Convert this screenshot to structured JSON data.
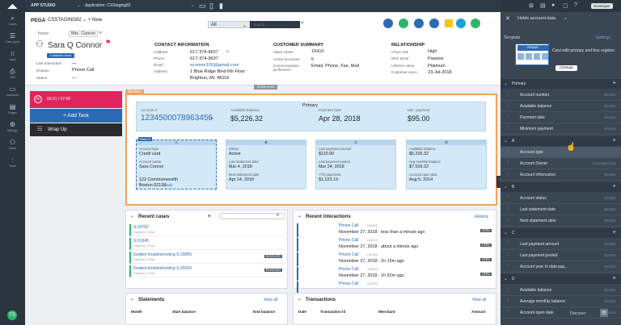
{
  "topbar": {
    "app_studio": "APP STUDIO",
    "application": "Application: CSStaging82",
    "developer": "Developer"
  },
  "rail": [
    {
      "icon": "search-icon",
      "glyph": "⌕",
      "label": "Cases"
    },
    {
      "icon": "data-icon",
      "glyph": "☰",
      "label": "Case types"
    },
    {
      "icon": "apps-icon",
      "glyph": "⁝⁝",
      "label": "Data"
    },
    {
      "icon": "file-icon",
      "glyph": "⎙",
      "label": "Files"
    },
    {
      "icon": "screen-icon",
      "glyph": "▭",
      "label": "Interfaces"
    },
    {
      "icon": "pages-icon",
      "glyph": "▤",
      "label": "Pages"
    },
    {
      "icon": "settings-icon",
      "glyph": "⚙",
      "label": "Settings"
    },
    {
      "icon": "users-icon",
      "glyph": "⚇",
      "label": "Users"
    },
    {
      "icon": "tools-icon",
      "glyph": "⫶",
      "label": "Tools"
    }
  ],
  "header": {
    "org": "PEGA",
    "case_id": "CSSTAGING82",
    "new_label": "+ New",
    "search_scope": "All",
    "search_placeholder": "Search...",
    "breadcrumb_home": "Home",
    "breadcrumb_tab": "Mrs. Connor",
    "customer_name": "Sara Q Connor",
    "customer_tag": "Customer since",
    "last_interaction_label": "Last interaction",
    "last_interaction_value": "—",
    "reason_label": "Reason",
    "reason_value": "Phone Call",
    "status_label": "Status",
    "status_value": "—",
    "contact": {
      "title": "CONTACT INFORMATION",
      "callback_l": "Callback",
      "callback_v": "617-374-9637",
      "phone_l": "Phone",
      "phone_v": "617-374-9637",
      "email_l": "Email",
      "email_v": "sconnor150@gmail.com",
      "address_l": "Address",
      "address_v1": "1 Blue Ridge Blvd 6th Floor",
      "address_v2": "Brighton, MI, 48116"
    },
    "summary": {
      "title": "CUSTOMER SUMMARY",
      "open_cases_l": "Open cases",
      "open_cases_v": "10410",
      "active_accounts_l": "Active accounts",
      "active_accounts_v": "5",
      "comm_l": "Communication preference",
      "comm_v": "Email, Phone, Fax, Mail"
    },
    "relationship": {
      "title": "RELATIONSHIP",
      "churn_l": "Churn risk",
      "churn_v": "High",
      "nps_l": "NPS trend",
      "nps_v": "Passive",
      "lifetime_l": "Lifetime value",
      "lifetime_v": "Platinum",
      "since_l": "Customer since",
      "since_v": "23-Jul-2018"
    },
    "show_less": "SHOW LESS"
  },
  "leftcol": {
    "timer": "00:21 / 07:00",
    "add_task": "+ Add Task",
    "wrap_up": "Wrap Up"
  },
  "section": {
    "tag": "Section",
    "primary": {
      "title": "Primary",
      "account_l": "Account #",
      "account_v": "1234500078963456",
      "balance_l": "Available balance",
      "balance_v": "$5,226.32",
      "paydate_l": "Payment date",
      "paydate_v": "Apr 28, 2018",
      "minpay_l": "Min. payment",
      "minpay_v": "$95.00"
    },
    "field_badge": "Field",
    "cols": [
      {
        "title": "A",
        "r1l": "Account type",
        "r1v": "Credit card",
        "r2l": "Account owner",
        "r2v": "Sara Connor",
        "r3l": "",
        "r3v": "122 Commonwealth",
        "r3v2": "Boston   02138",
        "edit": "Edit"
      },
      {
        "title": "B",
        "r1l": "Status",
        "r1v": "Active",
        "r2l": "Last statement date",
        "r2v": "Mar 4, 2018",
        "r3l": "Next statement date",
        "r3v": "Apr 14, 2018"
      },
      {
        "title": "C",
        "r1l": "Last payment amount",
        "r1v": "$110.00",
        "r2l": "Last payment posted",
        "r2v": "Mar 24, 2018",
        "r3l": "YTD payments",
        "r3v": "$1,123.19"
      },
      {
        "title": "D",
        "r1l": "Available balance",
        "r1v": "$5,226.32",
        "r2l": "Avg monthly balance",
        "r2v": "$7,539.22",
        "r3l": "Account open date",
        "r3v": "Aug 5, 2014"
      }
    ]
  },
  "recent_cases": {
    "title": "Recent cases",
    "items": [
      {
        "id": "S-20782",
        "sub": "Urgency: 0  Due:",
        "badge": ""
      },
      {
        "id": "S-51045",
        "sub": "Urgency: 0  Due:",
        "badge": ""
      },
      {
        "id": "Guided troubleshooting S-29055",
        "sub": "Urgency: 0  Due:",
        "badge": "RESOLVED"
      },
      {
        "id": "Guided troubleshooting S-29200",
        "sub": "Urgency: 0  Due:",
        "badge": "RESOLVED"
      }
    ]
  },
  "recent_interactions": {
    "title": "Recent interactions",
    "history": "History",
    "items": [
      {
        "name": "Phone Call",
        "id": "I-62311",
        "time": "November 27, 2018 - less than a minute ago",
        "badge": "OPEN"
      },
      {
        "name": "Phone Call",
        "id": "I-62310",
        "time": "November 27, 2018 - about a minute ago",
        "badge": "OPEN"
      },
      {
        "name": "Phone Call",
        "id": "I-62306",
        "time": "November 27, 2018 - 1h 15m ago",
        "badge": "OPEN"
      },
      {
        "name": "Phone Call",
        "id": "I-62304",
        "time": "November 27, 2018 - 1h 52m ago",
        "badge": "OPEN"
      },
      {
        "name": "Phone Call",
        "id": "I-62295",
        "time": "",
        "badge": ""
      }
    ]
  },
  "statements": {
    "title": "Statements",
    "view_all": "View all",
    "col1": "Month",
    "col2": "Start balance",
    "col3": "End balance"
  },
  "transactions": {
    "title": "Transactions",
    "view_all": "View all",
    "col1": "Date",
    "col2": "Transaction Id",
    "col3": "Merchant",
    "col4": "Amount"
  },
  "rpanel": {
    "title": "Holds account data",
    "template_label": "Template",
    "settings": "Settings",
    "template_desc": "Card with primary and four regions",
    "template_name": "PRIMARY",
    "change": "Change",
    "groups": [
      {
        "title": "Primary",
        "rows": [
          {
            "t": "Account number",
            "s": "Section"
          },
          {
            "t": "Available balance",
            "s": "Section"
          },
          {
            "t": "Payment date",
            "s": "Section"
          },
          {
            "t": "Minimum payment",
            "s": "Section"
          }
        ]
      },
      {
        "title": "A",
        "rows": [
          {
            "t": "Account type",
            "s": ""
          },
          {
            "t": "Account Owner",
            "s": "Formatted text"
          },
          {
            "t": "Account information",
            "s": "Section"
          }
        ]
      },
      {
        "title": "B",
        "rows": [
          {
            "t": "Account status",
            "s": "Section"
          },
          {
            "t": "Last statement date",
            "s": "Section"
          },
          {
            "t": "Next statement date",
            "s": "Section"
          }
        ]
      },
      {
        "title": "C",
        "rows": [
          {
            "t": "Last payment amount",
            "s": "Section"
          },
          {
            "t": "Last payment posted",
            "s": "Section"
          },
          {
            "t": "Account year to date pay...",
            "s": "Section"
          }
        ]
      },
      {
        "title": "D",
        "rows": [
          {
            "t": "Available balance",
            "s": "Section"
          },
          {
            "t": "Average monthly balance",
            "s": "Section"
          },
          {
            "t": "Account open date",
            "s": "Section"
          }
        ]
      }
    ],
    "discover": "Discover"
  },
  "colors": {
    "accent": "#2d6ab4",
    "section_border": "#f0a35e",
    "card": "#d4e9f8",
    "wrap": "#2b2b2b",
    "timer": "#e0245e",
    "rail": "#2b3540"
  }
}
